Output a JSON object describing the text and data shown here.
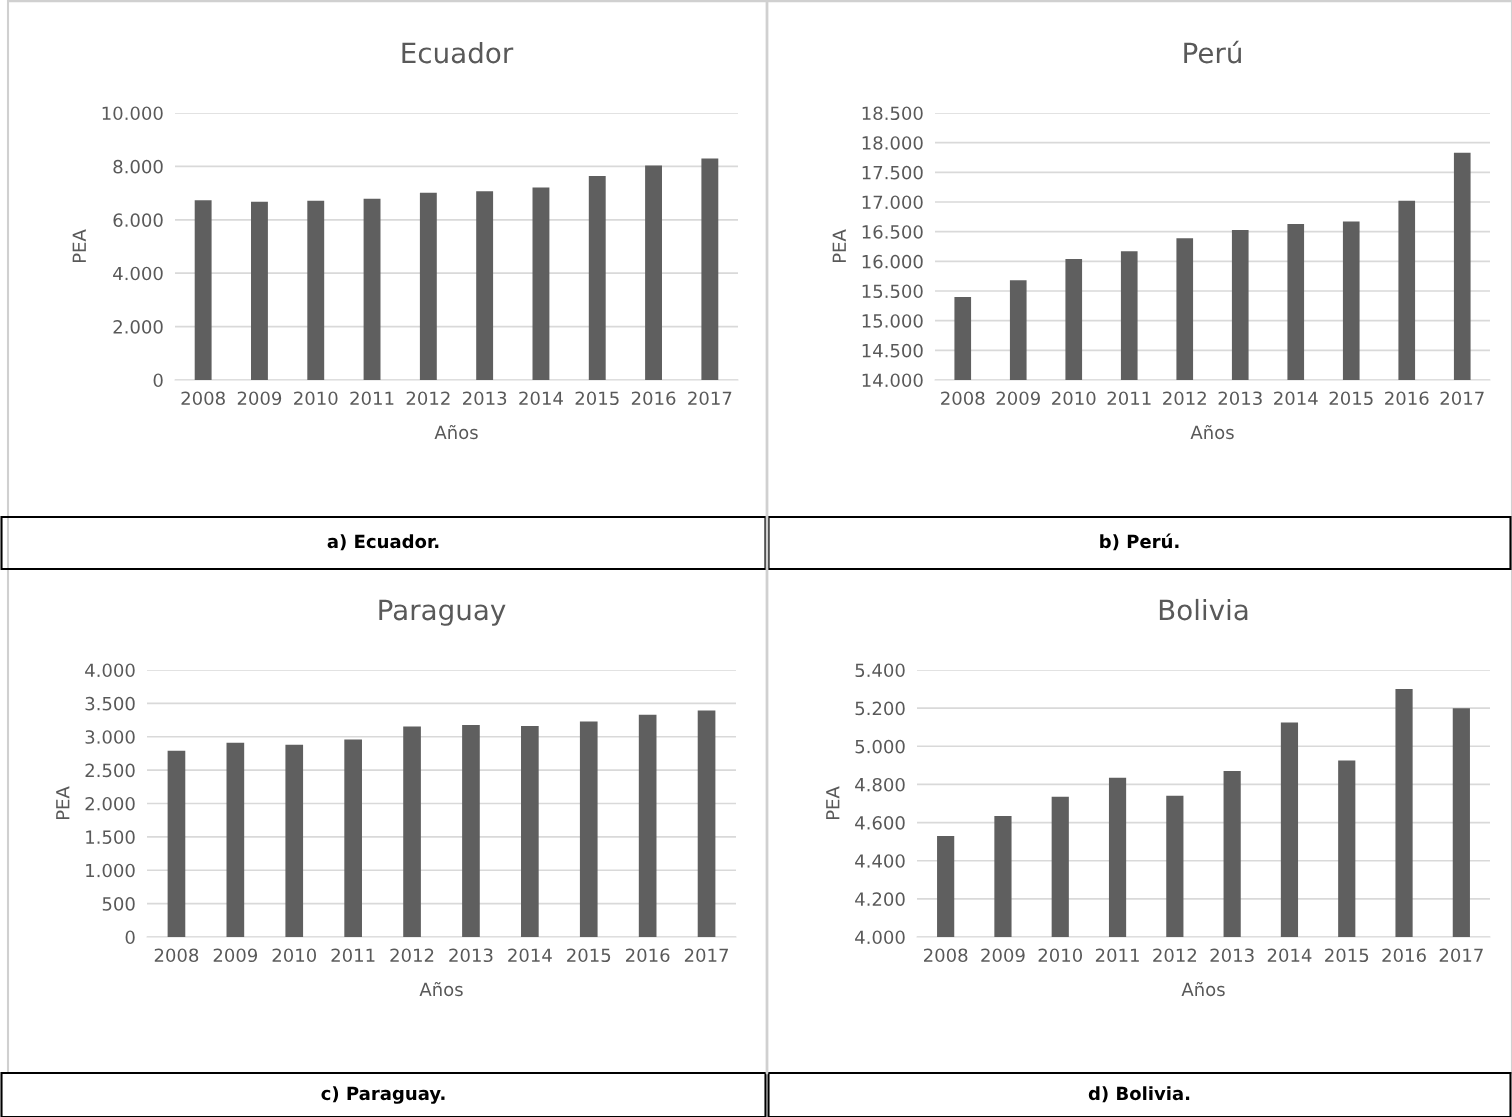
{
  "chart_data": [
    {
      "type": "bar",
      "title": "Ecuador",
      "xlabel": "Años",
      "ylabel": "PEA",
      "categories": [
        "2008",
        "2009",
        "2010",
        "2011",
        "2012",
        "2013",
        "2014",
        "2015",
        "2016",
        "2017"
      ],
      "values": [
        6730,
        6680,
        6710,
        6790,
        7010,
        7070,
        7210,
        7640,
        8030,
        8300
      ],
      "color": "#5f5f5f",
      "ylim": [
        0,
        10000
      ],
      "yticks": [
        0,
        {
          "value": 2000,
          "label": "2.000"
        },
        {
          "value": 4000,
          "label": "4.000"
        },
        {
          "value": 6000,
          "label": "6.000"
        },
        {
          "value": 8000,
          "label": "8.000"
        },
        {
          "value": 10000,
          "label": "10.000"
        }
      ],
      "grid": "y",
      "annotations": [
        "a) Ecuador."
      ]
    },
    {
      "type": "bar",
      "title": "Perú",
      "xlabel": "Años",
      "ylabel": "PEA",
      "categories": [
        "2008",
        "2009",
        "2010",
        "2011",
        "2012",
        "2013",
        "2014",
        "2015",
        "2016",
        "2017"
      ],
      "values": [
        15400,
        15680,
        16040,
        16170,
        16390,
        16530,
        16630,
        16670,
        17020,
        17830
      ],
      "color": "#5f5f5f",
      "ylim": [
        14000,
        18500
      ],
      "yticks": [
        {
          "value": 14000,
          "label": "14.000"
        },
        {
          "value": 14500,
          "label": "14.500"
        },
        {
          "value": 15000,
          "label": "15.000"
        },
        {
          "value": 15500,
          "label": "15.500"
        },
        {
          "value": 16000,
          "label": "16.000"
        },
        {
          "value": 16500,
          "label": "16.500"
        },
        {
          "value": 17000,
          "label": "17.000"
        },
        {
          "value": 17500,
          "label": "17.500"
        },
        {
          "value": 18000,
          "label": "18.000"
        },
        {
          "value": 18500,
          "label": "18.500"
        }
      ],
      "grid": "y",
      "annotations": [
        "b) Perú."
      ]
    },
    {
      "type": "bar",
      "title": "Paraguay",
      "xlabel": "Años",
      "ylabel": "PEA",
      "categories": [
        "2008",
        "2009",
        "2010",
        "2011",
        "2012",
        "2013",
        "2014",
        "2015",
        "2016",
        "2017"
      ],
      "values": [
        2790,
        2910,
        2880,
        2960,
        3155,
        3175,
        3160,
        3230,
        3330,
        3395
      ],
      "color": "#5f5f5f",
      "ylim": [
        0,
        4000
      ],
      "yticks": [
        0,
        500,
        {
          "value": 1000,
          "label": "1.000"
        },
        {
          "value": 1500,
          "label": "1.500"
        },
        {
          "value": 2000,
          "label": "2.000"
        },
        {
          "value": 2500,
          "label": "2.500"
        },
        {
          "value": 3000,
          "label": "3.000"
        },
        {
          "value": 3500,
          "label": "3.500"
        },
        {
          "value": 4000,
          "label": "4.000"
        }
      ],
      "grid": "y",
      "annotations": [
        "c) Paraguay."
      ]
    },
    {
      "type": "bar",
      "title": "Bolivia",
      "xlabel": "Años",
      "ylabel": "PEA",
      "categories": [
        "2008",
        "2009",
        "2010",
        "2011",
        "2012",
        "2013",
        "2014",
        "2015",
        "2016",
        "2017"
      ],
      "values": [
        4530,
        4635,
        4735,
        4835,
        4740,
        4870,
        5125,
        4925,
        5300,
        5200
      ],
      "color": "#5f5f5f",
      "ylim": [
        4000,
        5400
      ],
      "yticks": [
        {
          "value": 4000,
          "label": "4.000"
        },
        {
          "value": 4200,
          "label": "4.200"
        },
        {
          "value": 4400,
          "label": "4.400"
        },
        {
          "value": 4600,
          "label": "4.600"
        },
        {
          "value": 4800,
          "label": "4.800"
        },
        {
          "value": 5000,
          "label": "5.000"
        },
        {
          "value": 5200,
          "label": "5.200"
        },
        {
          "value": 5400,
          "label": "5.400"
        }
      ],
      "grid": "y",
      "annotations": [
        "d) Bolivia."
      ]
    }
  ]
}
